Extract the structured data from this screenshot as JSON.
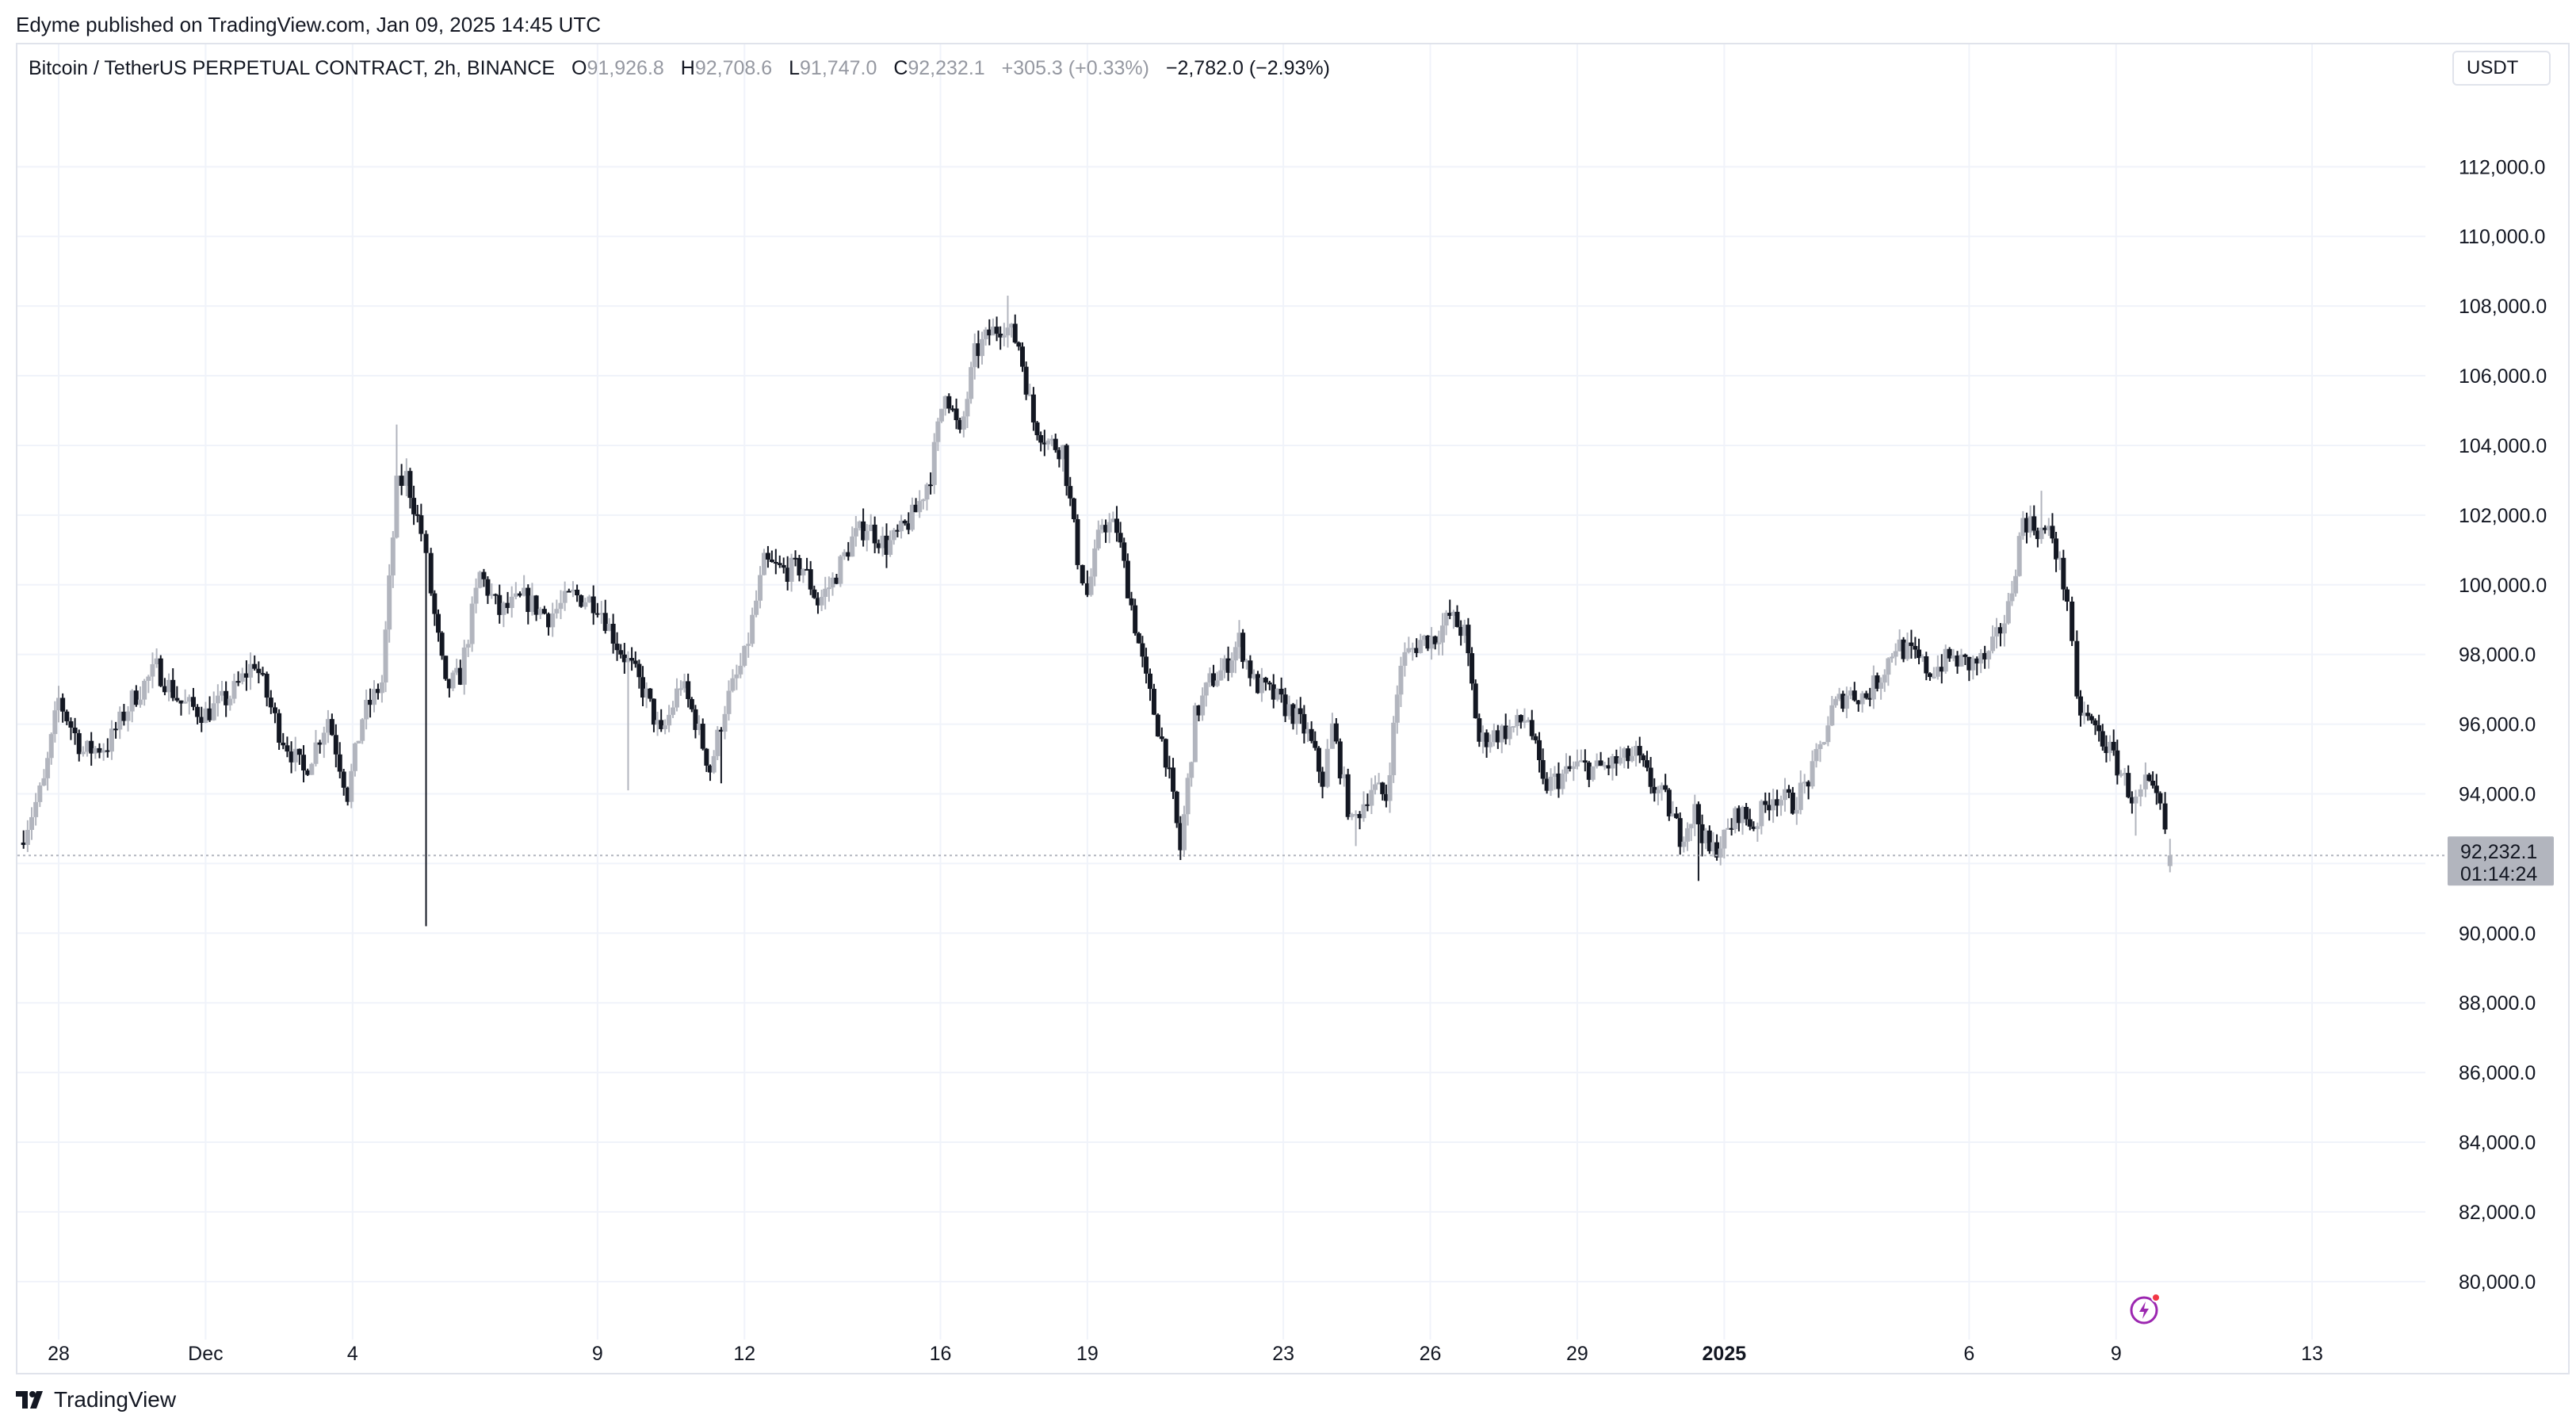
{
  "header": {
    "publisher_line": "Edyme published on TradingView.com, Jan 09, 2025 14:45 UTC"
  },
  "legend": {
    "symbol": "Bitcoin / TetherUS PERPETUAL CONTRACT, 2h, BINANCE",
    "open_label": "O",
    "open": "91,926.8",
    "high_label": "H",
    "high": "92,708.6",
    "low_label": "L",
    "low": "91,747.0",
    "close_label": "C",
    "close": "92,232.1",
    "change": "+305.3 (+0.33%)",
    "total_change": "−2,782.0 (−2.93%)"
  },
  "currency_button": "USDT",
  "price_tag": {
    "price": "92,232.1",
    "countdown": "01:14:24"
  },
  "footer": {
    "brand": "TradingView"
  },
  "icons": {
    "brand_logo": "tradingview-logo-icon",
    "flash": "lightning-bolt-icon"
  },
  "colors": {
    "candle_up": "#b2b5be",
    "candle_down": "#131722",
    "grid": "#f0f3fa",
    "axis_text": "#131722",
    "price_tag_bg": "#b2b5be",
    "bolt": "#9c27b0",
    "dot": "#f23645"
  },
  "chart_data": {
    "type": "candlestick",
    "title": "Bitcoin / TetherUS PERPETUAL CONTRACT, 2h, BINANCE",
    "interval": "2h",
    "ylim": [
      79200,
      113600
    ],
    "y_ticks": [
      80000,
      82000,
      84000,
      86000,
      88000,
      90000,
      92000,
      94000,
      96000,
      98000,
      100000,
      102000,
      104000,
      106000,
      108000,
      110000,
      112000
    ],
    "y_tick_labels": [
      "80,000.0",
      "82,000.0",
      "84,000.0",
      "86,000.0",
      "88,000.0",
      "90,000.0",
      "92,000.0",
      "94,000.0",
      "96,000.0",
      "98,000.0",
      "100,000.0",
      "102,000.0",
      "104,000.0",
      "106,000.0",
      "108,000.0",
      "110,000.0",
      "112,000.0"
    ],
    "x_ticks": [
      {
        "label": "28",
        "day": 0,
        "bold": false
      },
      {
        "label": "Dec",
        "day": 3,
        "bold": false
      },
      {
        "label": "4",
        "day": 6,
        "bold": false
      },
      {
        "label": "9",
        "day": 11,
        "bold": false
      },
      {
        "label": "12",
        "day": 14,
        "bold": false
      },
      {
        "label": "16",
        "day": 18,
        "bold": false
      },
      {
        "label": "19",
        "day": 21,
        "bold": false
      },
      {
        "label": "23",
        "day": 25,
        "bold": false
      },
      {
        "label": "26",
        "day": 28,
        "bold": false
      },
      {
        "label": "29",
        "day": 31,
        "bold": false
      },
      {
        "label": "2025",
        "day": 34,
        "bold": true
      },
      {
        "label": "6",
        "day": 39,
        "bold": false
      },
      {
        "label": "9",
        "day": 42,
        "bold": false
      },
      {
        "label": "13",
        "day": 46,
        "bold": false
      }
    ],
    "x_range_days": [
      -0.9,
      49.9
    ],
    "last_price": 92232.1,
    "anchors": [
      [
        -0.8,
        92600
      ],
      [
        -0.3,
        94300
      ],
      [
        0.0,
        96700
      ],
      [
        0.5,
        95200
      ],
      [
        1.0,
        95400
      ],
      [
        1.5,
        96700
      ],
      [
        2.0,
        97600
      ],
      [
        2.5,
        96600
      ],
      [
        3.0,
        96300
      ],
      [
        3.5,
        96800
      ],
      [
        4.0,
        97800
      ],
      [
        4.5,
        95800
      ],
      [
        5.0,
        94600
      ],
      [
        5.5,
        96200
      ],
      [
        5.9,
        94000
      ],
      [
        6.2,
        96200
      ],
      [
        6.6,
        97200
      ],
      [
        6.9,
        102800
      ],
      [
        7.1,
        103100
      ],
      [
        7.4,
        101500
      ],
      [
        7.6,
        99800
      ],
      [
        7.9,
        97000
      ],
      [
        8.2,
        97400
      ],
      [
        8.6,
        100300
      ],
      [
        9.0,
        99200
      ],
      [
        9.5,
        99600
      ],
      [
        10.0,
        99100
      ],
      [
        10.5,
        99700
      ],
      [
        11.0,
        99500
      ],
      [
        11.4,
        98300
      ],
      [
        11.7,
        97600
      ],
      [
        12.0,
        96800
      ],
      [
        12.3,
        95600
      ],
      [
        12.7,
        97200
      ],
      [
        13.0,
        96100
      ],
      [
        13.3,
        94700
      ],
      [
        13.6,
        96500
      ],
      [
        14.0,
        97900
      ],
      [
        14.4,
        100600
      ],
      [
        14.8,
        100400
      ],
      [
        15.2,
        100500
      ],
      [
        15.5,
        99500
      ],
      [
        15.8,
        100100
      ],
      [
        16.2,
        101300
      ],
      [
        16.5,
        101700
      ],
      [
        16.9,
        101100
      ],
      [
        17.2,
        101500
      ],
      [
        17.5,
        102100
      ],
      [
        17.8,
        103200
      ],
      [
        18.1,
        105700
      ],
      [
        18.4,
        104200
      ],
      [
        18.7,
        106600
      ],
      [
        19.0,
        107200
      ],
      [
        19.3,
        107500
      ],
      [
        19.6,
        106900
      ],
      [
        19.9,
        104700
      ],
      [
        20.2,
        104100
      ],
      [
        20.5,
        103900
      ],
      [
        20.8,
        100800
      ],
      [
        21.0,
        99700
      ],
      [
        21.3,
        101800
      ],
      [
        21.6,
        101600
      ],
      [
        21.9,
        99400
      ],
      [
        22.2,
        97200
      ],
      [
        22.6,
        95100
      ],
      [
        22.9,
        92400
      ],
      [
        23.2,
        96200
      ],
      [
        23.5,
        97200
      ],
      [
        23.8,
        97600
      ],
      [
        24.1,
        98400
      ],
      [
        24.4,
        97200
      ],
      [
        24.8,
        96800
      ],
      [
        25.2,
        96300
      ],
      [
        25.5,
        95700
      ],
      [
        25.8,
        94400
      ],
      [
        26.0,
        95900
      ],
      [
        26.4,
        93100
      ],
      [
        26.8,
        94200
      ],
      [
        27.1,
        93900
      ],
      [
        27.4,
        97800
      ],
      [
        27.8,
        98400
      ],
      [
        28.1,
        98500
      ],
      [
        28.4,
        99100
      ],
      [
        28.7,
        98600
      ],
      [
        29.0,
        95500
      ],
      [
        29.3,
        95700
      ],
      [
        29.7,
        95900
      ],
      [
        30.0,
        96200
      ],
      [
        30.3,
        94200
      ],
      [
        30.7,
        94500
      ],
      [
        31.0,
        94800
      ],
      [
        31.4,
        94700
      ],
      [
        31.8,
        94900
      ],
      [
        32.2,
        95100
      ],
      [
        32.5,
        94300
      ],
      [
        32.8,
        93800
      ],
      [
        33.1,
        92800
      ],
      [
        33.4,
        93500
      ],
      [
        33.7,
        92300
      ],
      [
        34.0,
        92700
      ],
      [
        34.3,
        93500
      ],
      [
        34.6,
        93100
      ],
      [
        35.0,
        94000
      ],
      [
        35.4,
        93700
      ],
      [
        35.8,
        94600
      ],
      [
        36.2,
        96400
      ],
      [
        36.5,
        96900
      ],
      [
        36.9,
        96800
      ],
      [
        37.2,
        97400
      ],
      [
        37.5,
        98300
      ],
      [
        37.9,
        97900
      ],
      [
        38.2,
        97500
      ],
      [
        38.6,
        97900
      ],
      [
        39.0,
        97700
      ],
      [
        39.4,
        97900
      ],
      [
        39.8,
        99300
      ],
      [
        40.1,
        101900
      ],
      [
        40.4,
        101600
      ],
      [
        40.7,
        101400
      ],
      [
        41.0,
        99600
      ],
      [
        41.2,
        96500
      ],
      [
        41.5,
        96000
      ],
      [
        41.8,
        95400
      ],
      [
        42.1,
        94600
      ],
      [
        42.4,
        93700
      ],
      [
        42.6,
        94300
      ],
      [
        42.9,
        93500
      ],
      [
        43.1,
        92232
      ]
    ]
  }
}
